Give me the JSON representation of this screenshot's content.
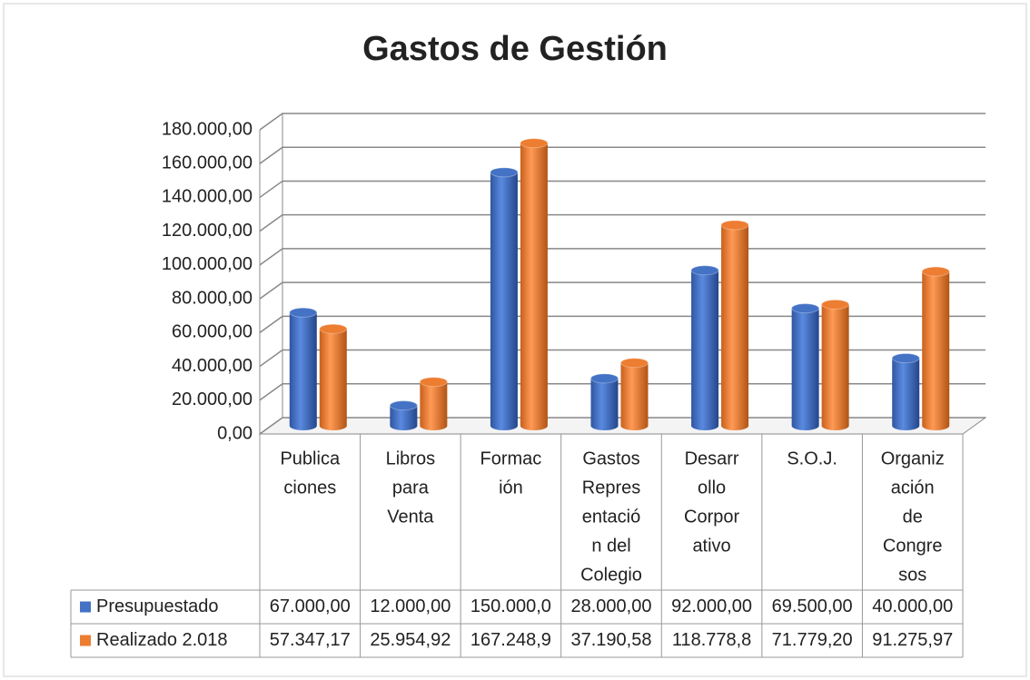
{
  "chart_data": {
    "type": "bar3d",
    "title": "Gastos de Gestión",
    "categories": [
      [
        "Publica",
        "ciones"
      ],
      [
        "Libros",
        "para",
        "Venta"
      ],
      [
        "Formac",
        "ión"
      ],
      [
        "Gastos",
        "Repres",
        "entació",
        "n del",
        "Colegio"
      ],
      [
        "Desarr",
        "ollo",
        "Corpor",
        "ativo"
      ],
      [
        "S.O.J."
      ],
      [
        "Organiz",
        "ación",
        "de",
        "Congre",
        "sos"
      ]
    ],
    "series": [
      {
        "name": "Presupuestado",
        "color": "#4472c4",
        "values": [
          67000,
          12000,
          150000,
          28000,
          92000,
          69500,
          40000
        ],
        "value_labels": [
          "67.000,00",
          "12.000,00",
          "150.000,0",
          "28.000,00",
          "92.000,00",
          "69.500,00",
          "40.000,00"
        ]
      },
      {
        "name": "Realizado 2.018",
        "color": "#ed7d31",
        "values": [
          57347.17,
          25954.92,
          167248.9,
          37190.58,
          118778.8,
          71779.2,
          91275.97
        ],
        "value_labels": [
          "57.347,17",
          "25.954,92",
          "167.248,9",
          "37.190,58",
          "118.778,8",
          "71.779,20",
          "91.275,97"
        ]
      }
    ],
    "ylim": [
      0,
      180000
    ],
    "yticks": [
      {
        "value": 0,
        "label": "0,00"
      },
      {
        "value": 20000,
        "label": "20.000,00"
      },
      {
        "value": 40000,
        "label": "40.000,00"
      },
      {
        "value": 60000,
        "label": "60.000,00"
      },
      {
        "value": 80000,
        "label": "80.000,00"
      },
      {
        "value": 100000,
        "label": "100.000,00"
      },
      {
        "value": 120000,
        "label": "120.000,00"
      },
      {
        "value": 140000,
        "label": "140.000,00"
      },
      {
        "value": 160000,
        "label": "160.000,00"
      },
      {
        "value": 180000,
        "label": "180.000,00"
      }
    ],
    "grid": true
  }
}
